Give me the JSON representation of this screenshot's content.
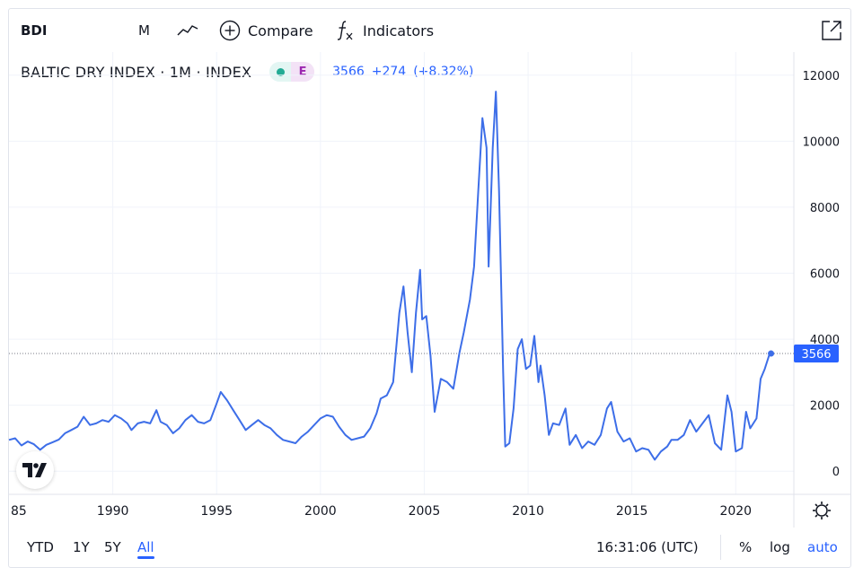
{
  "toolbar": {
    "symbol": "BDI",
    "interval": "M",
    "chart_type_icon": "line-chart-icon",
    "compare_label": "Compare",
    "indicators_label": "Indicators"
  },
  "legend": {
    "title": "BALTIC DRY INDEX · 1M · INDEX",
    "status_letter": "E",
    "last": "3566",
    "change": "+274",
    "change_pct": "(+8.32%)"
  },
  "bottom": {
    "ranges": [
      "YTD",
      "1Y",
      "5Y",
      "All"
    ],
    "active_range": "All",
    "time": "16:31:06 (UTC)",
    "percent_label": "%",
    "log_label": "log",
    "auto_label": "auto"
  },
  "colors": {
    "line": "#3d6ee8",
    "accent": "#2962ff",
    "grid": "#f0f3fa"
  },
  "chart_data": {
    "type": "line",
    "title": "BALTIC DRY INDEX",
    "xlabel": "",
    "ylabel": "",
    "xlim": [
      1985,
      2022.8
    ],
    "ylim": [
      -700,
      12700
    ],
    "x_ticks": [
      1990,
      1995,
      2000,
      2005,
      2010,
      2015,
      2020
    ],
    "x_tick_labels": [
      "1990",
      "1995",
      "2000",
      "2005",
      "2010",
      "2015",
      "2020"
    ],
    "x_partial_label": "85",
    "y_ticks": [
      0,
      2000,
      4000,
      6000,
      8000,
      10000,
      12000
    ],
    "y_tick_labels": [
      "0",
      "2000",
      "4000",
      "6000",
      "8000",
      "10000",
      "12000"
    ],
    "last_value_label": "3566",
    "last_value": 3566,
    "grid": true,
    "series": [
      {
        "points": [
          [
            1985.0,
            950
          ],
          [
            1985.3,
            1000
          ],
          [
            1985.6,
            780
          ],
          [
            1985.9,
            900
          ],
          [
            1986.2,
            820
          ],
          [
            1986.5,
            650
          ],
          [
            1986.8,
            800
          ],
          [
            1987.1,
            880
          ],
          [
            1987.4,
            960
          ],
          [
            1987.7,
            1150
          ],
          [
            1988.0,
            1250
          ],
          [
            1988.3,
            1350
          ],
          [
            1988.6,
            1650
          ],
          [
            1988.9,
            1400
          ],
          [
            1989.2,
            1450
          ],
          [
            1989.5,
            1550
          ],
          [
            1989.8,
            1500
          ],
          [
            1990.1,
            1700
          ],
          [
            1990.4,
            1600
          ],
          [
            1990.7,
            1450
          ],
          [
            1990.9,
            1250
          ],
          [
            1991.2,
            1450
          ],
          [
            1991.5,
            1500
          ],
          [
            1991.8,
            1450
          ],
          [
            1992.1,
            1850
          ],
          [
            1992.3,
            1500
          ],
          [
            1992.6,
            1400
          ],
          [
            1992.9,
            1150
          ],
          [
            1993.2,
            1300
          ],
          [
            1993.5,
            1550
          ],
          [
            1993.8,
            1700
          ],
          [
            1994.1,
            1500
          ],
          [
            1994.4,
            1450
          ],
          [
            1994.7,
            1550
          ],
          [
            1995.0,
            2050
          ],
          [
            1995.2,
            2400
          ],
          [
            1995.5,
            2150
          ],
          [
            1995.8,
            1850
          ],
          [
            1996.1,
            1550
          ],
          [
            1996.4,
            1250
          ],
          [
            1996.7,
            1400
          ],
          [
            1997.0,
            1550
          ],
          [
            1997.3,
            1400
          ],
          [
            1997.6,
            1300
          ],
          [
            1997.9,
            1100
          ],
          [
            1998.2,
            950
          ],
          [
            1998.5,
            900
          ],
          [
            1998.8,
            850
          ],
          [
            1999.1,
            1050
          ],
          [
            1999.4,
            1200
          ],
          [
            1999.7,
            1400
          ],
          [
            2000.0,
            1600
          ],
          [
            2000.3,
            1700
          ],
          [
            2000.6,
            1650
          ],
          [
            2000.9,
            1350
          ],
          [
            2001.2,
            1100
          ],
          [
            2001.5,
            950
          ],
          [
            2001.8,
            1000
          ],
          [
            2002.1,
            1050
          ],
          [
            2002.4,
            1300
          ],
          [
            2002.7,
            1750
          ],
          [
            2002.9,
            2200
          ],
          [
            2003.2,
            2300
          ],
          [
            2003.5,
            2700
          ],
          [
            2003.8,
            4800
          ],
          [
            2004.0,
            5600
          ],
          [
            2004.2,
            4200
          ],
          [
            2004.4,
            3000
          ],
          [
            2004.6,
            4800
          ],
          [
            2004.8,
            6100
          ],
          [
            2004.9,
            4600
          ],
          [
            2005.1,
            4700
          ],
          [
            2005.3,
            3500
          ],
          [
            2005.5,
            1800
          ],
          [
            2005.8,
            2800
          ],
          [
            2006.1,
            2700
          ],
          [
            2006.4,
            2500
          ],
          [
            2006.7,
            3600
          ],
          [
            2006.9,
            4200
          ],
          [
            2007.2,
            5200
          ],
          [
            2007.4,
            6200
          ],
          [
            2007.6,
            8500
          ],
          [
            2007.8,
            10700
          ],
          [
            2008.0,
            9800
          ],
          [
            2008.1,
            6200
          ],
          [
            2008.3,
            9800
          ],
          [
            2008.45,
            11500
          ],
          [
            2008.6,
            8500
          ],
          [
            2008.8,
            3000
          ],
          [
            2008.9,
            750
          ],
          [
            2009.1,
            850
          ],
          [
            2009.3,
            1900
          ],
          [
            2009.5,
            3700
          ],
          [
            2009.7,
            4000
          ],
          [
            2009.9,
            3100
          ],
          [
            2010.1,
            3200
          ],
          [
            2010.3,
            4100
          ],
          [
            2010.5,
            2700
          ],
          [
            2010.6,
            3200
          ],
          [
            2010.8,
            2300
          ],
          [
            2011.0,
            1100
          ],
          [
            2011.2,
            1450
          ],
          [
            2011.5,
            1400
          ],
          [
            2011.8,
            1900
          ],
          [
            2012.0,
            800
          ],
          [
            2012.3,
            1100
          ],
          [
            2012.6,
            700
          ],
          [
            2012.9,
            900
          ],
          [
            2013.2,
            800
          ],
          [
            2013.5,
            1100
          ],
          [
            2013.8,
            1900
          ],
          [
            2014.0,
            2100
          ],
          [
            2014.3,
            1200
          ],
          [
            2014.6,
            900
          ],
          [
            2014.9,
            1000
          ],
          [
            2015.2,
            600
          ],
          [
            2015.5,
            700
          ],
          [
            2015.8,
            650
          ],
          [
            2016.1,
            350
          ],
          [
            2016.4,
            600
          ],
          [
            2016.7,
            750
          ],
          [
            2016.9,
            950
          ],
          [
            2017.2,
            950
          ],
          [
            2017.5,
            1100
          ],
          [
            2017.8,
            1550
          ],
          [
            2018.1,
            1200
          ],
          [
            2018.4,
            1450
          ],
          [
            2018.7,
            1700
          ],
          [
            2019.0,
            850
          ],
          [
            2019.3,
            650
          ],
          [
            2019.6,
            2300
          ],
          [
            2019.8,
            1800
          ],
          [
            2020.0,
            600
          ],
          [
            2020.3,
            700
          ],
          [
            2020.5,
            1800
          ],
          [
            2020.7,
            1300
          ],
          [
            2021.0,
            1600
          ],
          [
            2021.2,
            2800
          ],
          [
            2021.4,
            3100
          ],
          [
            2021.6,
            3500
          ],
          [
            2021.7,
            3566
          ]
        ]
      }
    ]
  }
}
